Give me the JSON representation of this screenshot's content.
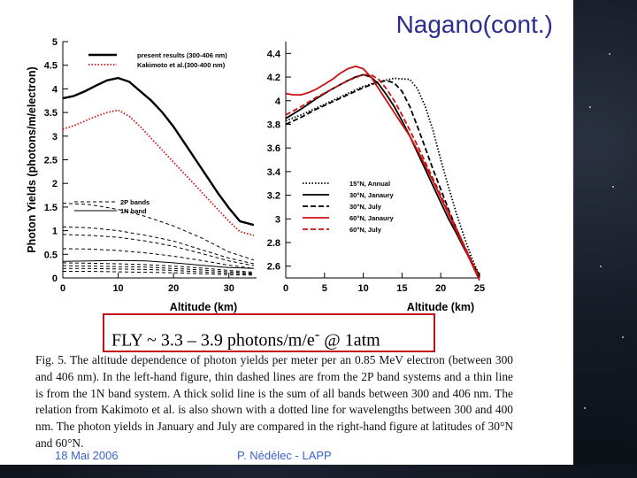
{
  "slide": {
    "title": "Nagano(cont.)",
    "fly_box": {
      "prefix": "FLY ~ 3.3 – 3.9 photons/m/e",
      "superscript": "-",
      "suffix": " @ 1atm"
    },
    "caption": "Fig. 5. The altitude dependence of photon yields per meter per an 0.85 MeV electron (between 300 and 406 nm). In the left-hand figure, thin dashed lines are from the 2P band systems and a thin line is from the 1N band system. A thick solid line is the sum of all bands between 300 and 406 nm. The relation from Kakimoto et al. is also shown with a dotted line for wavelengths between 300 and 400 nm. The photon yields in January and July are compared in the right-hand figure at latitudes of 30°N and 60°N.",
    "footer": {
      "date": "18 Mai 2006",
      "author": "P. Nédélec - LAPP"
    }
  },
  "chart_data": [
    {
      "type": "line",
      "ylabel": "Photon Yields (photons/m/electron)",
      "xlabel": "Altitude (km)",
      "xlim": [
        0,
        35
      ],
      "ylim": [
        0,
        5
      ],
      "x_ticks": [
        0,
        10,
        20,
        30
      ],
      "y_ticks": [
        0,
        0.5,
        1,
        1.5,
        2,
        2.5,
        3,
        3.5,
        4,
        4.5,
        5
      ],
      "legend_top": [
        "present results (300-406 nm)",
        "Kakimoto et al.(300-400 nm)"
      ],
      "legend_bands": [
        "2P bands",
        "1N band"
      ],
      "colors": {
        "present": "#000000",
        "kakimoto": "#cc1111"
      },
      "series": [
        {
          "name": "present results (300-406 nm)",
          "style": "thick-solid",
          "x": [
            0,
            2,
            4,
            6,
            8,
            10,
            12,
            14,
            16,
            18,
            20,
            22,
            24,
            26,
            28,
            30,
            32,
            34.5
          ],
          "y": [
            3.8,
            3.85,
            3.95,
            4.07,
            4.18,
            4.23,
            4.15,
            3.95,
            3.75,
            3.5,
            3.2,
            2.85,
            2.5,
            2.15,
            1.8,
            1.48,
            1.2,
            1.12
          ]
        },
        {
          "name": "Kakimoto et al.(300-400 nm)",
          "style": "dotted",
          "x": [
            0,
            2,
            4,
            6,
            8,
            10,
            12,
            14,
            16,
            18,
            20,
            22,
            24,
            26,
            28,
            30,
            32,
            34.5
          ],
          "y": [
            3.15,
            3.22,
            3.32,
            3.42,
            3.5,
            3.55,
            3.42,
            3.2,
            2.95,
            2.7,
            2.45,
            2.2,
            1.95,
            1.7,
            1.45,
            1.2,
            0.98,
            0.9
          ]
        },
        {
          "name": "1N band",
          "style": "thin-solid",
          "x": [
            0,
            5,
            10,
            15,
            20,
            25,
            30,
            34.5
          ],
          "y": [
            0.35,
            0.36,
            0.37,
            0.36,
            0.32,
            0.27,
            0.22,
            0.2
          ]
        },
        {
          "name": "2P band a",
          "style": "thin-dashed",
          "x": [
            0,
            5,
            10,
            15,
            20,
            25,
            30,
            34.5
          ],
          "y": [
            1.58,
            1.55,
            1.45,
            1.3,
            1.1,
            0.85,
            0.55,
            0.38
          ]
        },
        {
          "name": "2P band b",
          "style": "thin-dashed",
          "x": [
            0,
            5,
            10,
            15,
            20,
            25,
            30,
            34.5
          ],
          "y": [
            1.08,
            1.06,
            1.0,
            0.9,
            0.78,
            0.6,
            0.42,
            0.3
          ]
        },
        {
          "name": "2P band c",
          "style": "thin-dashed",
          "x": [
            0,
            5,
            10,
            15,
            20,
            25,
            30,
            34.5
          ],
          "y": [
            0.92,
            0.9,
            0.86,
            0.78,
            0.67,
            0.52,
            0.36,
            0.26
          ]
        },
        {
          "name": "2P band d",
          "style": "thin-dashed",
          "x": [
            0,
            5,
            10,
            15,
            20,
            25,
            30,
            34.5
          ],
          "y": [
            0.62,
            0.61,
            0.58,
            0.53,
            0.46,
            0.37,
            0.27,
            0.2
          ]
        },
        {
          "name": "2P band e",
          "style": "thin-dashed",
          "x": [
            0,
            5,
            10,
            15,
            20,
            25,
            30,
            34.5
          ],
          "y": [
            0.32,
            0.31,
            0.3,
            0.28,
            0.25,
            0.21,
            0.16,
            0.12
          ]
        },
        {
          "name": "2P band f",
          "style": "thin-dashed",
          "x": [
            0,
            5,
            10,
            15,
            20,
            25,
            30,
            34.5
          ],
          "y": [
            0.26,
            0.25,
            0.24,
            0.23,
            0.2,
            0.17,
            0.13,
            0.1
          ]
        },
        {
          "name": "2P band g",
          "style": "thin-dashed",
          "x": [
            0,
            5,
            10,
            15,
            20,
            25,
            30,
            34.5
          ],
          "y": [
            0.2,
            0.2,
            0.19,
            0.18,
            0.16,
            0.13,
            0.1,
            0.08
          ]
        },
        {
          "name": "2P band h",
          "style": "thin-dashed",
          "x": [
            0,
            5,
            10,
            15,
            20,
            25,
            30,
            34.5
          ],
          "y": [
            0.14,
            0.14,
            0.13,
            0.12,
            0.11,
            0.09,
            0.07,
            0.06
          ]
        }
      ]
    },
    {
      "type": "line",
      "xlabel": "Altitude (km)",
      "xlim": [
        0,
        25
      ],
      "ylim": [
        2.5,
        4.5
      ],
      "x_ticks": [
        0,
        5,
        10,
        15,
        20,
        25
      ],
      "y_ticks": [
        2.6,
        2.8,
        3,
        3.2,
        3.4,
        3.6,
        3.8,
        4,
        4.2,
        4.4
      ],
      "legend": [
        "15°N, Annual",
        "30°N, Janaury",
        "30°N, July",
        "60°N, Janaury",
        "60°N, July"
      ],
      "series": [
        {
          "name": "15°N, Annual",
          "style": "dotted",
          "color": "#000000",
          "x": [
            0,
            2,
            4,
            6,
            8,
            10,
            12,
            14,
            16,
            17,
            18,
            19,
            20,
            21,
            22,
            23,
            24,
            25
          ],
          "y": [
            3.83,
            3.88,
            3.94,
            4.0,
            4.06,
            4.12,
            4.16,
            4.19,
            4.18,
            4.1,
            3.95,
            3.75,
            3.5,
            3.27,
            3.05,
            2.85,
            2.67,
            2.52
          ]
        },
        {
          "name": "30°N, Janaury",
          "style": "solid",
          "color": "#000000",
          "x": [
            0,
            2,
            4,
            6,
            8,
            9,
            10,
            11,
            12,
            13,
            14,
            15,
            16,
            17,
            18,
            19,
            20,
            21,
            22,
            23,
            24,
            25
          ],
          "y": [
            3.85,
            3.93,
            4.02,
            4.1,
            4.17,
            4.2,
            4.22,
            4.2,
            4.14,
            4.05,
            3.95,
            3.83,
            3.7,
            3.56,
            3.42,
            3.28,
            3.14,
            3.0,
            2.88,
            2.75,
            2.63,
            2.52
          ]
        },
        {
          "name": "30°N, July",
          "style": "dashed",
          "color": "#000000",
          "x": [
            0,
            2,
            4,
            6,
            8,
            10,
            12,
            13,
            14,
            15,
            16,
            17,
            18,
            19,
            20,
            21,
            22,
            23,
            24,
            25
          ],
          "y": [
            3.8,
            3.86,
            3.93,
            3.99,
            4.05,
            4.11,
            4.16,
            4.17,
            4.15,
            4.08,
            3.95,
            3.78,
            3.6,
            3.42,
            3.25,
            3.08,
            2.92,
            2.77,
            2.63,
            2.5
          ]
        },
        {
          "name": "60°N, Janaury",
          "style": "solid",
          "color": "#cc1111",
          "x": [
            0,
            1,
            2,
            3,
            4,
            5,
            6,
            7,
            8,
            9,
            10,
            11,
            12,
            13,
            14,
            15,
            16,
            17,
            18,
            19,
            20,
            21,
            22,
            23,
            24,
            25
          ],
          "y": [
            4.06,
            4.05,
            4.05,
            4.07,
            4.1,
            4.14,
            4.18,
            4.23,
            4.27,
            4.29,
            4.27,
            4.2,
            4.1,
            4.0,
            3.9,
            3.8,
            3.7,
            3.58,
            3.45,
            3.32,
            3.18,
            3.04,
            2.9,
            2.76,
            2.62,
            2.48
          ]
        },
        {
          "name": "60°N, July",
          "style": "dashed",
          "color": "#cc1111",
          "x": [
            0,
            2,
            4,
            6,
            8,
            10,
            11,
            12,
            13,
            14,
            15,
            16,
            17,
            18,
            19,
            20,
            21,
            22,
            23,
            24,
            25
          ],
          "y": [
            3.88,
            3.95,
            4.03,
            4.1,
            4.17,
            4.22,
            4.22,
            4.18,
            4.1,
            4.0,
            3.88,
            3.75,
            3.62,
            3.48,
            3.34,
            3.2,
            3.06,
            2.92,
            2.78,
            2.64,
            2.5
          ]
        }
      ]
    }
  ]
}
